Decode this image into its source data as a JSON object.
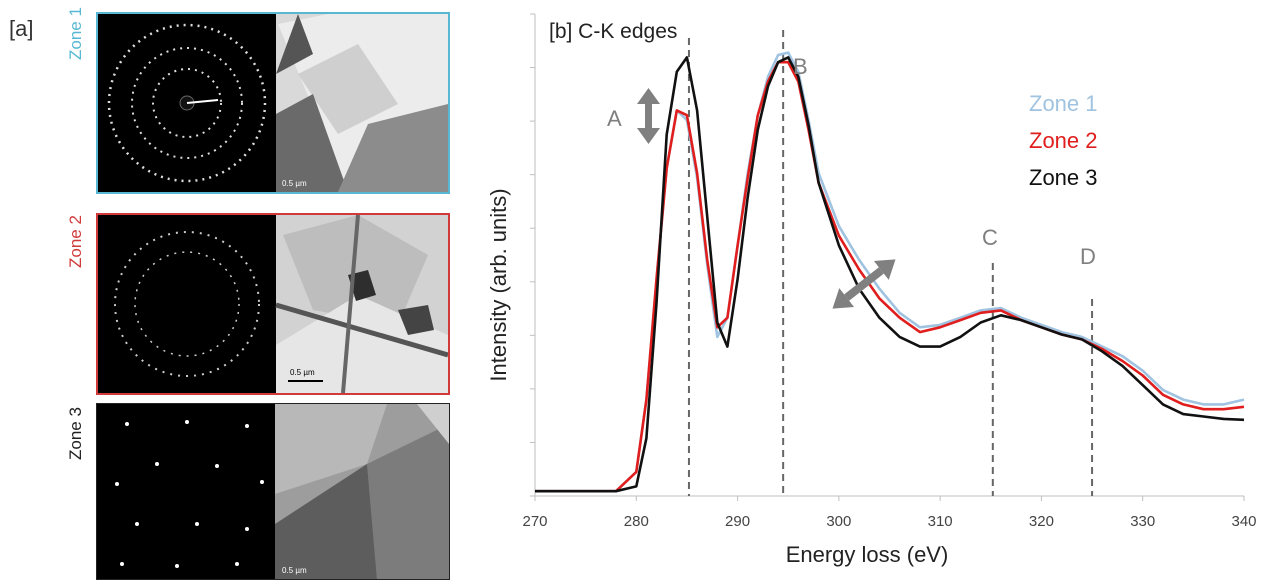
{
  "panel_a": {
    "label": "[a]",
    "zones": [
      {
        "label": "Zone 1",
        "color": "#58b8d3",
        "scale_bar": "0.5 µm"
      },
      {
        "label": "Zone 2",
        "color": "#d03a3a",
        "scale_bar": "0.5 µm"
      },
      {
        "label": "Zone 3",
        "color": "#222222",
        "scale_bar": "0.5 µm"
      }
    ]
  },
  "chart_data": {
    "type": "line",
    "title": "[b] C-K edges",
    "xlabel": "Energy loss (eV)",
    "ylabel": "Intensity (arb. units)",
    "xlim": [
      270,
      340
    ],
    "ylim": [
      0,
      1.0
    ],
    "x_ticks": [
      270,
      280,
      290,
      300,
      310,
      320,
      330,
      340
    ],
    "y_tick_count": 9,
    "y_tick_labels_shown": false,
    "grid": false,
    "legend_position": "top-right",
    "series": [
      {
        "name": "Zone 1",
        "color": "#9fc3e0",
        "x": [
          270,
          274,
          278,
          280,
          281,
          282,
          283,
          284,
          285,
          286,
          287,
          288,
          289,
          290,
          291,
          292,
          293,
          294,
          295,
          296,
          297,
          298,
          300,
          302,
          304,
          306,
          308,
          310,
          312,
          314,
          316,
          318,
          320,
          322,
          324,
          326,
          328,
          330,
          332,
          334,
          336,
          338,
          340
        ],
        "y": [
          0.01,
          0.01,
          0.01,
          0.05,
          0.2,
          0.45,
          0.68,
          0.8,
          0.78,
          0.66,
          0.48,
          0.33,
          0.37,
          0.52,
          0.67,
          0.79,
          0.87,
          0.915,
          0.92,
          0.88,
          0.78,
          0.67,
          0.56,
          0.49,
          0.43,
          0.38,
          0.35,
          0.355,
          0.37,
          0.385,
          0.39,
          0.37,
          0.355,
          0.34,
          0.33,
          0.31,
          0.29,
          0.26,
          0.22,
          0.2,
          0.19,
          0.19,
          0.2
        ]
      },
      {
        "name": "Zone 2",
        "color": "#e01e1e",
        "x": [
          270,
          274,
          278,
          280,
          281,
          282,
          283,
          284,
          285,
          286,
          287,
          288,
          289,
          290,
          291,
          292,
          293,
          294,
          295,
          296,
          297,
          298,
          300,
          302,
          304,
          306,
          308,
          310,
          312,
          314,
          316,
          318,
          320,
          322,
          324,
          326,
          328,
          330,
          332,
          334,
          336,
          338,
          340
        ],
        "y": [
          0.01,
          0.01,
          0.01,
          0.05,
          0.2,
          0.45,
          0.68,
          0.8,
          0.79,
          0.67,
          0.49,
          0.35,
          0.37,
          0.52,
          0.66,
          0.79,
          0.86,
          0.9,
          0.9,
          0.86,
          0.76,
          0.65,
          0.54,
          0.47,
          0.41,
          0.37,
          0.34,
          0.35,
          0.365,
          0.38,
          0.385,
          0.365,
          0.35,
          0.335,
          0.325,
          0.305,
          0.28,
          0.25,
          0.21,
          0.19,
          0.18,
          0.18,
          0.185
        ]
      },
      {
        "name": "Zone 3",
        "color": "#111111",
        "x": [
          270,
          274,
          278,
          280,
          281,
          282,
          283,
          284,
          285,
          286,
          287,
          288,
          289,
          290,
          291,
          292,
          293,
          294,
          295,
          296,
          297,
          298,
          300,
          302,
          304,
          306,
          308,
          310,
          312,
          314,
          316,
          318,
          320,
          322,
          324,
          326,
          328,
          330,
          332,
          334,
          336,
          338,
          340
        ],
        "y": [
          0.01,
          0.01,
          0.01,
          0.02,
          0.12,
          0.4,
          0.75,
          0.88,
          0.91,
          0.8,
          0.58,
          0.36,
          0.31,
          0.45,
          0.62,
          0.76,
          0.85,
          0.9,
          0.91,
          0.87,
          0.77,
          0.65,
          0.52,
          0.43,
          0.37,
          0.33,
          0.31,
          0.31,
          0.33,
          0.36,
          0.375,
          0.365,
          0.35,
          0.335,
          0.325,
          0.3,
          0.27,
          0.23,
          0.19,
          0.17,
          0.165,
          0.16,
          0.158
        ]
      }
    ],
    "markers": [
      {
        "label": "A",
        "x": 285.2
      },
      {
        "label": "B",
        "x": 294.5
      },
      {
        "label": "C",
        "x": 315.2
      },
      {
        "label": "D",
        "x": 325
      }
    ]
  }
}
